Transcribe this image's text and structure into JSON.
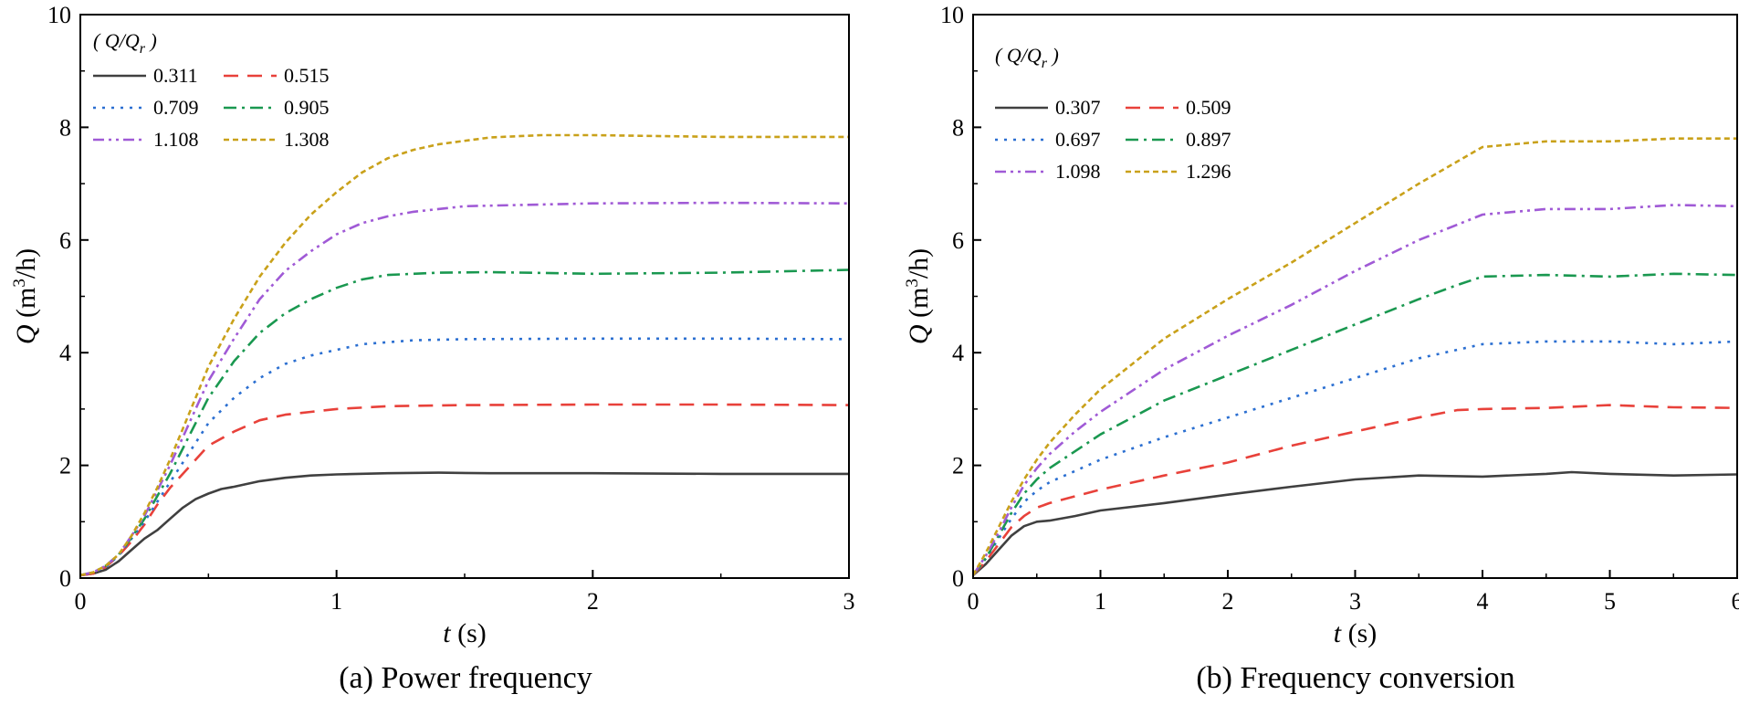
{
  "chart_data": [
    {
      "type": "line",
      "caption": "(a) Power frequency",
      "xlabel_var": "t",
      "xlabel_unit": " (s)",
      "ylabel_var": "Q",
      "ylabel_unit": " (m",
      "ylabel_sup": "3",
      "ylabel_end": "/h)",
      "xlim": [
        0,
        3
      ],
      "ylim": [
        0,
        10
      ],
      "xticks": [
        0,
        1,
        2,
        3
      ],
      "yticks": [
        0,
        2,
        4,
        6,
        8,
        10
      ],
      "legend_title": "( Q/Q",
      "legend_title_sub": "r",
      "legend_title_end": " )",
      "series": [
        {
          "name": "0.311",
          "color": "#404040",
          "dash": "solid",
          "x": [
            0,
            0.05,
            0.1,
            0.15,
            0.2,
            0.25,
            0.3,
            0.35,
            0.4,
            0.45,
            0.5,
            0.55,
            0.6,
            0.7,
            0.8,
            0.9,
            1.0,
            1.2,
            1.4,
            1.6,
            2.0,
            2.5,
            3.0
          ],
          "values": [
            0.05,
            0.08,
            0.15,
            0.3,
            0.5,
            0.7,
            0.85,
            1.05,
            1.25,
            1.4,
            1.5,
            1.58,
            1.62,
            1.72,
            1.78,
            1.82,
            1.84,
            1.86,
            1.87,
            1.86,
            1.86,
            1.85,
            1.85
          ]
        },
        {
          "name": "0.515",
          "color": "#e8413a",
          "dash": "longdash",
          "x": [
            0,
            0.05,
            0.1,
            0.15,
            0.2,
            0.25,
            0.3,
            0.35,
            0.4,
            0.45,
            0.5,
            0.6,
            0.7,
            0.8,
            0.9,
            1.0,
            1.2,
            1.5,
            2.0,
            2.5,
            3.0
          ],
          "values": [
            0.05,
            0.08,
            0.2,
            0.4,
            0.65,
            0.95,
            1.3,
            1.6,
            1.85,
            2.1,
            2.35,
            2.6,
            2.8,
            2.9,
            2.95,
            3.0,
            3.05,
            3.07,
            3.08,
            3.08,
            3.07
          ]
        },
        {
          "name": "0.709",
          "color": "#2b6fd1",
          "dash": "dot",
          "x": [
            0,
            0.05,
            0.1,
            0.15,
            0.2,
            0.25,
            0.3,
            0.35,
            0.4,
            0.45,
            0.5,
            0.6,
            0.7,
            0.8,
            0.9,
            1.0,
            1.1,
            1.3,
            1.5,
            2.0,
            2.5,
            3.0
          ],
          "values": [
            0.05,
            0.1,
            0.2,
            0.4,
            0.7,
            1.0,
            1.35,
            1.7,
            2.05,
            2.4,
            2.75,
            3.2,
            3.55,
            3.8,
            3.95,
            4.05,
            4.15,
            4.22,
            4.24,
            4.25,
            4.25,
            4.24
          ]
        },
        {
          "name": "0.905",
          "color": "#1a9850",
          "dash": "dashdot",
          "x": [
            0,
            0.05,
            0.1,
            0.15,
            0.2,
            0.25,
            0.3,
            0.35,
            0.4,
            0.45,
            0.5,
            0.6,
            0.7,
            0.8,
            0.9,
            1.0,
            1.1,
            1.2,
            1.4,
            1.6,
            2.0,
            2.5,
            3.0
          ],
          "values": [
            0.05,
            0.1,
            0.22,
            0.42,
            0.72,
            1.05,
            1.45,
            1.85,
            2.3,
            2.75,
            3.2,
            3.85,
            4.35,
            4.7,
            4.95,
            5.15,
            5.3,
            5.38,
            5.42,
            5.43,
            5.4,
            5.42,
            5.47
          ]
        },
        {
          "name": "1.108",
          "color": "#a05ad6",
          "dash": "dashdotdot",
          "x": [
            0,
            0.05,
            0.1,
            0.15,
            0.2,
            0.25,
            0.3,
            0.35,
            0.4,
            0.45,
            0.5,
            0.6,
            0.7,
            0.8,
            0.9,
            1.0,
            1.1,
            1.2,
            1.3,
            1.5,
            2.0,
            2.5,
            3.0
          ],
          "values": [
            0.05,
            0.1,
            0.22,
            0.42,
            0.75,
            1.1,
            1.55,
            2.0,
            2.5,
            3.0,
            3.5,
            4.25,
            4.95,
            5.45,
            5.8,
            6.1,
            6.3,
            6.42,
            6.5,
            6.6,
            6.65,
            6.66,
            6.65
          ]
        },
        {
          "name": "1.308",
          "color": "#c9a11a",
          "dash": "shortdash",
          "x": [
            0,
            0.05,
            0.1,
            0.15,
            0.2,
            0.25,
            0.3,
            0.35,
            0.4,
            0.45,
            0.5,
            0.6,
            0.7,
            0.8,
            0.9,
            1.0,
            1.1,
            1.2,
            1.3,
            1.4,
            1.6,
            1.8,
            2.0,
            2.5,
            3.0
          ],
          "values": [
            0.05,
            0.1,
            0.22,
            0.42,
            0.75,
            1.15,
            1.6,
            2.1,
            2.65,
            3.2,
            3.75,
            4.6,
            5.35,
            5.95,
            6.45,
            6.85,
            7.2,
            7.45,
            7.6,
            7.7,
            7.82,
            7.86,
            7.86,
            7.83,
            7.83
          ]
        }
      ]
    },
    {
      "type": "line",
      "caption": "(b) Frequency conversion",
      "xlabel_var": "t",
      "xlabel_unit": " (s)",
      "ylabel_var": "Q",
      "ylabel_unit": " (m",
      "ylabel_sup": "3",
      "ylabel_end": "/h)",
      "xlim": [
        0,
        6
      ],
      "ylim": [
        0,
        10
      ],
      "xticks": [
        0,
        1,
        2,
        3,
        4,
        5,
        6
      ],
      "yticks": [
        0,
        2,
        4,
        6,
        8,
        10
      ],
      "legend_title": "( Q/Q",
      "legend_title_sub": "r",
      "legend_title_end": " )",
      "series": [
        {
          "name": "0.307",
          "color": "#404040",
          "dash": "solid",
          "x": [
            0,
            0.1,
            0.2,
            0.3,
            0.4,
            0.5,
            0.6,
            0.8,
            1.0,
            1.5,
            2.0,
            2.5,
            3.0,
            3.5,
            4.0,
            4.5,
            4.7,
            5.0,
            5.5,
            6.0
          ],
          "values": [
            0.05,
            0.25,
            0.5,
            0.75,
            0.92,
            1.0,
            1.02,
            1.1,
            1.2,
            1.33,
            1.48,
            1.62,
            1.75,
            1.82,
            1.8,
            1.85,
            1.88,
            1.85,
            1.82,
            1.84
          ]
        },
        {
          "name": "0.509",
          "color": "#e8413a",
          "dash": "longdash",
          "x": [
            0,
            0.1,
            0.2,
            0.3,
            0.4,
            0.5,
            0.6,
            0.8,
            1.0,
            1.5,
            2.0,
            2.5,
            3.0,
            3.5,
            3.8,
            4.0,
            4.5,
            5.0,
            5.5,
            6.0
          ],
          "values": [
            0.05,
            0.3,
            0.6,
            0.9,
            1.1,
            1.25,
            1.33,
            1.45,
            1.57,
            1.82,
            2.05,
            2.35,
            2.6,
            2.85,
            2.98,
            3.0,
            3.02,
            3.07,
            3.03,
            3.02
          ]
        },
        {
          "name": "0.697",
          "color": "#2b6fd1",
          "dash": "dot",
          "x": [
            0,
            0.1,
            0.2,
            0.3,
            0.4,
            0.5,
            0.6,
            0.8,
            1.0,
            1.5,
            2.0,
            2.5,
            3.0,
            3.5,
            4.0,
            4.5,
            5.0,
            5.5,
            6.0
          ],
          "values": [
            0.05,
            0.35,
            0.7,
            1.05,
            1.35,
            1.55,
            1.7,
            1.9,
            2.1,
            2.5,
            2.85,
            3.2,
            3.55,
            3.9,
            4.15,
            4.2,
            4.2,
            4.15,
            4.2
          ]
        },
        {
          "name": "0.897",
          "color": "#1a9850",
          "dash": "dashdot",
          "x": [
            0,
            0.1,
            0.2,
            0.3,
            0.4,
            0.5,
            0.6,
            0.8,
            1.0,
            1.5,
            2.0,
            2.5,
            3.0,
            3.5,
            3.8,
            4.0,
            4.5,
            5.0,
            5.5,
            6.0
          ],
          "values": [
            0.05,
            0.35,
            0.75,
            1.15,
            1.5,
            1.75,
            1.95,
            2.25,
            2.55,
            3.15,
            3.6,
            4.05,
            4.5,
            4.95,
            5.2,
            5.35,
            5.38,
            5.35,
            5.4,
            5.38
          ]
        },
        {
          "name": "1.098",
          "color": "#a05ad6",
          "dash": "dashdotdot",
          "x": [
            0,
            0.1,
            0.2,
            0.3,
            0.4,
            0.5,
            0.6,
            0.8,
            1.0,
            1.5,
            2.0,
            2.5,
            3.0,
            3.5,
            4.0,
            4.5,
            5.0,
            5.5,
            6.0
          ],
          "values": [
            0.05,
            0.4,
            0.8,
            1.25,
            1.65,
            1.95,
            2.2,
            2.6,
            2.95,
            3.7,
            4.3,
            4.85,
            5.45,
            6.0,
            6.45,
            6.55,
            6.55,
            6.62,
            6.6
          ]
        },
        {
          "name": "1.296",
          "color": "#c9a11a",
          "dash": "shortdash",
          "x": [
            0,
            0.1,
            0.2,
            0.3,
            0.4,
            0.5,
            0.6,
            0.8,
            1.0,
            1.5,
            2.0,
            2.5,
            3.0,
            3.5,
            4.0,
            4.5,
            5.0,
            5.5,
            6.0
          ],
          "values": [
            0.05,
            0.45,
            0.9,
            1.35,
            1.75,
            2.1,
            2.4,
            2.9,
            3.35,
            4.25,
            4.95,
            5.6,
            6.3,
            7.0,
            7.65,
            7.75,
            7.75,
            7.8,
            7.8
          ]
        }
      ]
    }
  ]
}
